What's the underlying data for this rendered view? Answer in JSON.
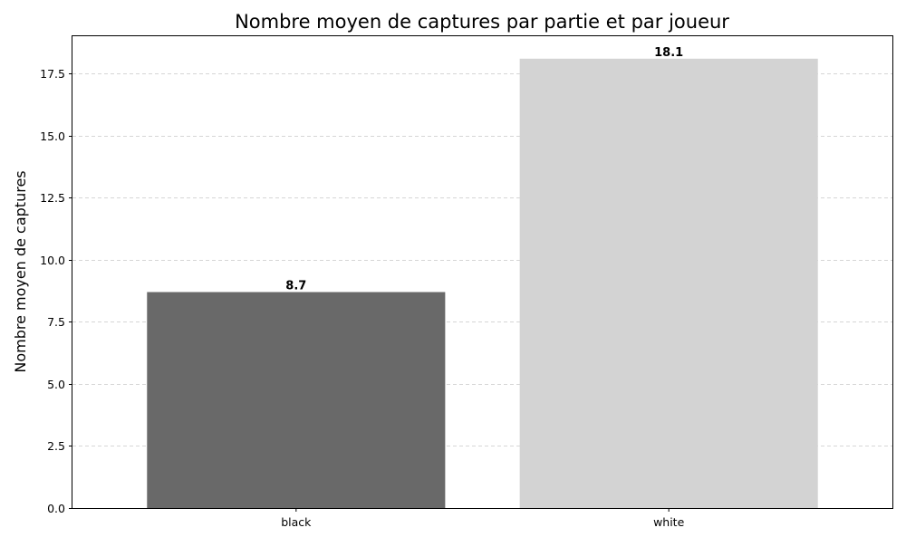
{
  "chart_data": {
    "type": "bar",
    "title": "Nombre moyen de captures par partie et par joueur",
    "xlabel": "",
    "ylabel": "Nombre moyen de captures",
    "categories": [
      "black",
      "white"
    ],
    "values": [
      8.7,
      18.1
    ],
    "value_labels": [
      "8.7",
      "18.1"
    ],
    "bar_colors": [
      "#696969",
      "#d3d3d3"
    ],
    "ylim": [
      0,
      19.005
    ],
    "yticks": [
      0,
      2.5,
      5,
      7.5,
      10,
      12.5,
      15,
      17.5
    ],
    "ytick_labels": [
      "0.0",
      "2.5",
      "5.0",
      "7.5",
      "10.0",
      "12.5",
      "15.0",
      "17.5"
    ],
    "grid": "y-dashed"
  }
}
